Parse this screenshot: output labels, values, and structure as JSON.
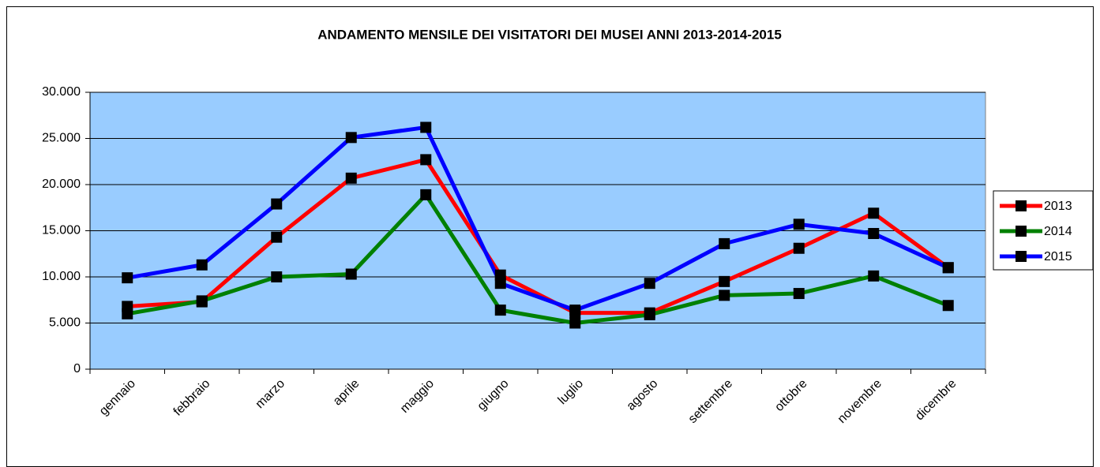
{
  "chart_data": {
    "type": "line",
    "title": "ANDAMENTO MENSILE DEI VISITATORI DEI MUSEI ANNI 2013-2014-2015",
    "categories": [
      "gennaio",
      "febbraio",
      "marzo",
      "aprile",
      "maggio",
      "giugno",
      "luglio",
      "agosto",
      "settembre",
      "ottobre",
      "novembre",
      "dicembre"
    ],
    "series": [
      {
        "name": "2013",
        "color": "#ff0000",
        "values": [
          6800,
          7300,
          14300,
          20700,
          22700,
          10200,
          6100,
          6100,
          9500,
          13100,
          16900,
          11000
        ]
      },
      {
        "name": "2014",
        "color": "#008000",
        "values": [
          6000,
          7400,
          10000,
          10300,
          18900,
          6400,
          5000,
          5900,
          8000,
          8200,
          10100,
          6900
        ]
      },
      {
        "name": "2015",
        "color": "#0000ff",
        "values": [
          9900,
          11300,
          17900,
          25100,
          26200,
          9300,
          6400,
          9300,
          13600,
          15700,
          14700,
          11000
        ]
      }
    ],
    "ylim": [
      0,
      30000
    ],
    "yticks": [
      0,
      {
        "value": 5000,
        "label": "5.000"
      },
      {
        "value": 10000,
        "label": "10.000"
      },
      {
        "value": 15000,
        "label": "15.000"
      },
      {
        "value": 20000,
        "label": "20.000"
      },
      {
        "value": 25000,
        "label": "25.000"
      },
      {
        "value": 30000,
        "label": "30.000"
      }
    ],
    "grid": true,
    "legend": "right",
    "plot_background": "#99ccff",
    "marker_color": "#000000"
  }
}
